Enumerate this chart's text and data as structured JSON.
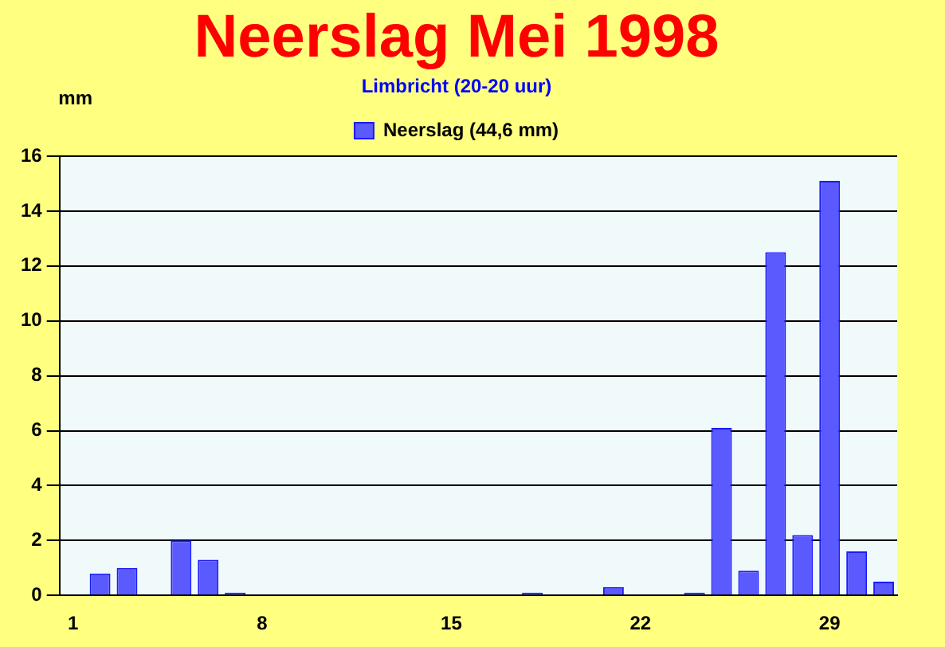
{
  "chart_data": {
    "type": "bar",
    "title": "Neerslag Mei 1998",
    "subtitle": "Limbricht (20-20 uur)",
    "ylabel": "mm",
    "categories": [
      "1",
      null,
      null,
      null,
      null,
      null,
      null,
      "8",
      null,
      null,
      null,
      null,
      null,
      null,
      "15",
      null,
      null,
      null,
      null,
      null,
      null,
      "22",
      null,
      null,
      null,
      null,
      null,
      null,
      "29",
      null,
      null
    ],
    "series": [
      {
        "name": "Neerslag (44,6 mm)",
        "color": "#5a5aff",
        "values": [
          0,
          0.8,
          1.0,
          0,
          2.0,
          1.3,
          0.1,
          0,
          0,
          0,
          0,
          0,
          0,
          0,
          0,
          0,
          0,
          0.1,
          0,
          0,
          0.3,
          0,
          0,
          0.1,
          6.1,
          0.9,
          12.5,
          2.2,
          15.1,
          1.6,
          0.5
        ]
      }
    ],
    "ylim": [
      0,
      16
    ],
    "yticks": [
      0,
      2,
      4,
      6,
      8,
      10,
      12,
      14,
      16
    ],
    "grid": "y",
    "legend": "top"
  }
}
